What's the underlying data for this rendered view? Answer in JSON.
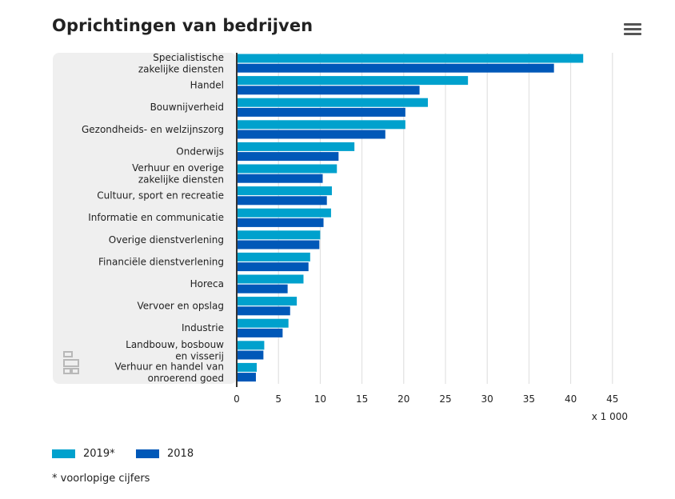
{
  "header": {
    "title": "Oprichtingen van bedrijven"
  },
  "colors": {
    "series_2019": "#00a1cd",
    "series_2018": "#0058b8",
    "panel": "#efefef",
    "grid": "#dcdcdc",
    "axis": "#333333"
  },
  "chart_data": {
    "type": "bar",
    "orientation": "horizontal",
    "title": "Oprichtingen van bedrijven",
    "categories": [
      "Specialistische zakelijke diensten",
      "Handel",
      "Bouwnijverheid",
      "Gezondheids- en welzijnszorg",
      "Onderwijs",
      "Verhuur en overige zakelijke diensten",
      "Cultuur, sport en recreatie",
      "Informatie en communicatie",
      "Overige dienstverlening",
      "Financiële dienstverlening",
      "Horeca",
      "Vervoer en opslag",
      "Industrie",
      "Landbouw, bosbouw en visserij",
      "Verhuur en handel van onroerend goed"
    ],
    "category_lines": [
      [
        "Specialistische",
        "zakelijke diensten"
      ],
      [
        "Handel"
      ],
      [
        "Bouwnijverheid"
      ],
      [
        "Gezondheids- en welzijnszorg"
      ],
      [
        "Onderwijs"
      ],
      [
        "Verhuur en overige",
        "zakelijke diensten"
      ],
      [
        "Cultuur, sport en recreatie"
      ],
      [
        "Informatie en communicatie"
      ],
      [
        "Overige dienstverlening"
      ],
      [
        "Financiële dienstverlening"
      ],
      [
        "Horeca"
      ],
      [
        "Vervoer en opslag"
      ],
      [
        "Industrie"
      ],
      [
        "Landbouw, bosbouw",
        "en visserij"
      ],
      [
        "Verhuur en handel van",
        "onroerend goed"
      ]
    ],
    "series": [
      {
        "name": "2019*",
        "color": "#00a1cd",
        "values": [
          41.4,
          27.6,
          22.8,
          20.1,
          14.0,
          11.9,
          11.3,
          11.2,
          9.9,
          8.7,
          7.9,
          7.1,
          6.1,
          3.2,
          2.3
        ]
      },
      {
        "name": "2018",
        "color": "#0058b8",
        "values": [
          37.9,
          21.8,
          20.1,
          17.7,
          12.1,
          10.2,
          10.7,
          10.3,
          9.8,
          8.5,
          6.0,
          6.3,
          5.4,
          3.1,
          2.2
        ]
      }
    ],
    "xlim": [
      0,
      45
    ],
    "xticks": [
      0,
      5,
      10,
      15,
      20,
      25,
      30,
      35,
      40,
      45
    ],
    "x_unit": "x 1 000",
    "grid": true
  },
  "legend": {
    "items": [
      {
        "label": "2019*",
        "color": "#00a1cd"
      },
      {
        "label": "2018",
        "color": "#0058b8"
      }
    ]
  },
  "footnote": "* voorlopige cijfers",
  "icons": {
    "menu": "hamburger-menu-icon",
    "watermark": "cbs-logo-icon"
  }
}
